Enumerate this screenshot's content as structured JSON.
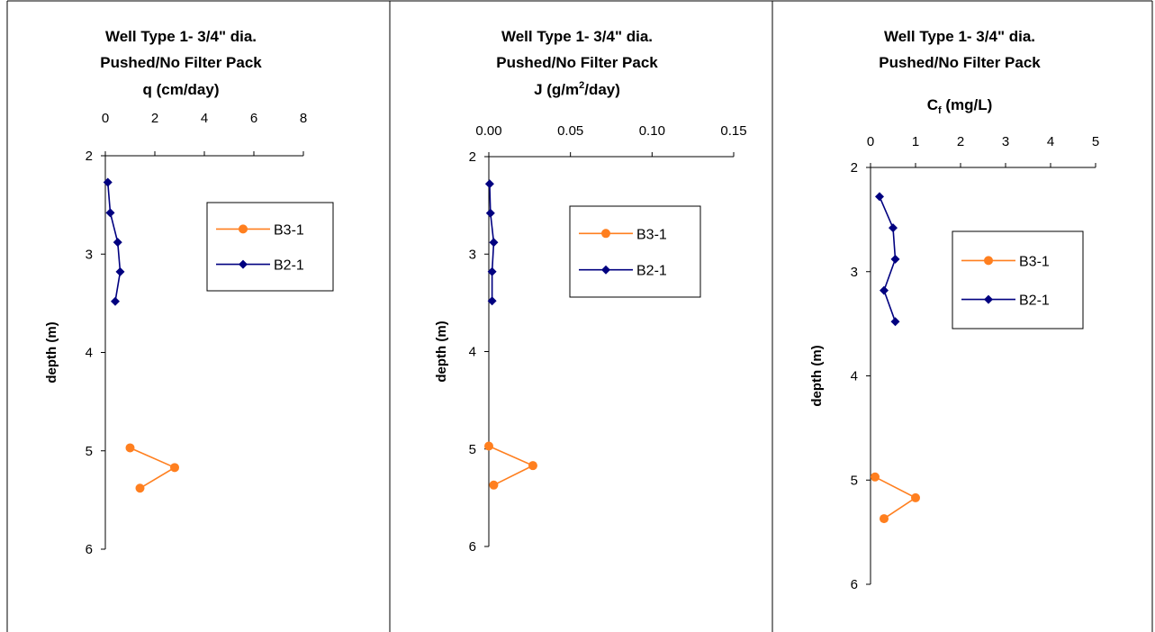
{
  "chart_data": [
    {
      "type": "line",
      "title_lines": [
        "Well Type 1- 3/4\" dia.",
        "Pushed/No Filter Pack"
      ],
      "xlabel": "q (cm/day)",
      "ylabel": "depth (m)",
      "x_ticks": [
        "0",
        "2",
        "4",
        "6",
        "8"
      ],
      "y_ticks": [
        "2",
        "3",
        "4",
        "5",
        "6"
      ],
      "xlim": [
        0,
        8
      ],
      "ylim": [
        2,
        6
      ],
      "y_inverted": true,
      "x_axis_position": "top",
      "legend": [
        "B3-1",
        "B2-1"
      ],
      "legend_position": "right",
      "series": [
        {
          "name": "B3-1",
          "color": "#FF7F1F",
          "marker": "circle",
          "points": [
            [
              1.0,
              4.97
            ],
            [
              2.8,
              5.17
            ],
            [
              1.4,
              5.38
            ]
          ]
        },
        {
          "name": "B2-1",
          "color": "#000080",
          "marker": "diamond",
          "points": [
            [
              0.1,
              2.27
            ],
            [
              0.2,
              2.58
            ],
            [
              0.5,
              2.88
            ],
            [
              0.6,
              3.18
            ],
            [
              0.4,
              3.48
            ]
          ]
        }
      ]
    },
    {
      "type": "line",
      "title_lines": [
        "Well Type 1- 3/4\" dia.",
        "Pushed/No Filter Pack"
      ],
      "xlabel": "J (g/m²/day)",
      "ylabel": "depth (m)",
      "x_ticks": [
        "0.00",
        "0.05",
        "0.10",
        "0.15"
      ],
      "y_ticks": [
        "2",
        "3",
        "4",
        "5",
        "6"
      ],
      "xlim": [
        0,
        0.15
      ],
      "ylim": [
        2,
        6
      ],
      "y_inverted": true,
      "x_axis_position": "top",
      "legend": [
        "B3-1",
        "B2-1"
      ],
      "legend_position": "right",
      "series": [
        {
          "name": "B3-1",
          "color": "#FF7F1F",
          "marker": "circle",
          "points": [
            [
              0.0,
              4.97
            ],
            [
              0.027,
              5.17
            ],
            [
              0.003,
              5.37
            ]
          ]
        },
        {
          "name": "B2-1",
          "color": "#000080",
          "marker": "diamond",
          "points": [
            [
              0.0005,
              2.28
            ],
            [
              0.001,
              2.58
            ],
            [
              0.003,
              2.88
            ],
            [
              0.002,
              3.18
            ],
            [
              0.002,
              3.48
            ]
          ]
        }
      ]
    },
    {
      "type": "line",
      "title_lines": [
        "Well Type 1- 3/4\" dia.",
        "Pushed/No Filter Pack"
      ],
      "xlabel": "Cf (mg/L)",
      "ylabel": "depth (m)",
      "x_ticks": [
        "0",
        "1",
        "2",
        "3",
        "4",
        "5"
      ],
      "y_ticks": [
        "2",
        "3",
        "4",
        "5",
        "6"
      ],
      "xlim": [
        0,
        5
      ],
      "ylim": [
        2,
        6
      ],
      "y_inverted": true,
      "x_axis_position": "top",
      "legend": [
        "B3-1",
        "B2-1"
      ],
      "legend_position": "right",
      "series": [
        {
          "name": "B3-1",
          "color": "#FF7F1F",
          "marker": "circle",
          "points": [
            [
              0.1,
              4.97
            ],
            [
              1.0,
              5.17
            ],
            [
              0.3,
              5.37
            ]
          ]
        },
        {
          "name": "B2-1",
          "color": "#000080",
          "marker": "diamond",
          "points": [
            [
              0.2,
              2.28
            ],
            [
              0.5,
              2.58
            ],
            [
              0.55,
              2.88
            ],
            [
              0.3,
              3.18
            ],
            [
              0.55,
              3.48
            ]
          ]
        }
      ]
    }
  ]
}
